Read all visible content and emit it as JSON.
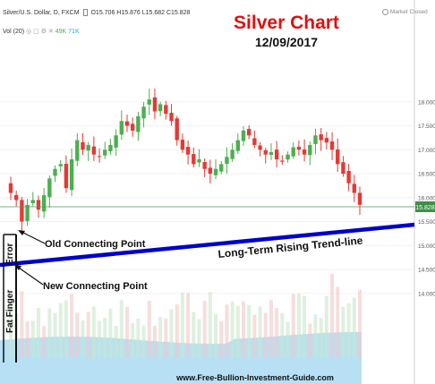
{
  "header": {
    "symbol_line": "Silver/U.S. Dollar, D, FXCM",
    "ohlc": [
      "O15.706",
      "H15.876",
      "L15.682",
      "C15.828"
    ],
    "vol_line": "Vol (20)",
    "vol_values": [
      "49K",
      "71K"
    ],
    "market_status": "Market Closed"
  },
  "title": "Silver Chart",
  "date": "12/09/2017",
  "footer": "www.Free-Bullion-Investment-Guide.com",
  "annotations": {
    "old_point": "Old Connecting Point",
    "new_point": "New Connecting Point",
    "trendline": "Long-Term Rising Trend-line",
    "error": "Error",
    "fat_finger": "Fat Finger"
  },
  "colors": {
    "up": "#4caf50",
    "down": "#e53935",
    "trendline": "#0000cc",
    "title": "#e01010",
    "price_line": "#2e7d32",
    "volume_area": "#9fd6f2"
  },
  "chart_data": {
    "type": "candlestick",
    "instrument": "Silver/U.S. Dollar",
    "timeframe": "D",
    "y_ticks": [
      14.0,
      14.5,
      15.0,
      15.5,
      16.0,
      16.5,
      17.0,
      17.5,
      18.0
    ],
    "ylim": [
      13.85,
      18.2
    ],
    "last_price": 15.828,
    "last_price_label": "15.828",
    "close_path": [
      16.1,
      15.95,
      15.5,
      15.85,
      15.95,
      15.75,
      16.05,
      16.4,
      16.6,
      16.7,
      16.2,
      16.8,
      17.2,
      17.0,
      17.1,
      16.9,
      16.85,
      17.0,
      17.1,
      17.3,
      17.6,
      17.5,
      17.4,
      17.7,
      17.9,
      18.05,
      17.8,
      17.95,
      17.75,
      17.6,
      17.2,
      17.0,
      16.9,
      16.7,
      16.8,
      16.6,
      16.5,
      16.6,
      16.7,
      16.85,
      17.0,
      17.2,
      17.4,
      17.3,
      17.1,
      17.0,
      16.9,
      16.95,
      16.8,
      16.75,
      16.9,
      17.05,
      17.0,
      16.9,
      17.1,
      17.3,
      17.2,
      17.15,
      17.0,
      16.7,
      16.5,
      16.3,
      16.1,
      15.85
    ],
    "volume_ticks": [
      "49K",
      "71K"
    ]
  }
}
